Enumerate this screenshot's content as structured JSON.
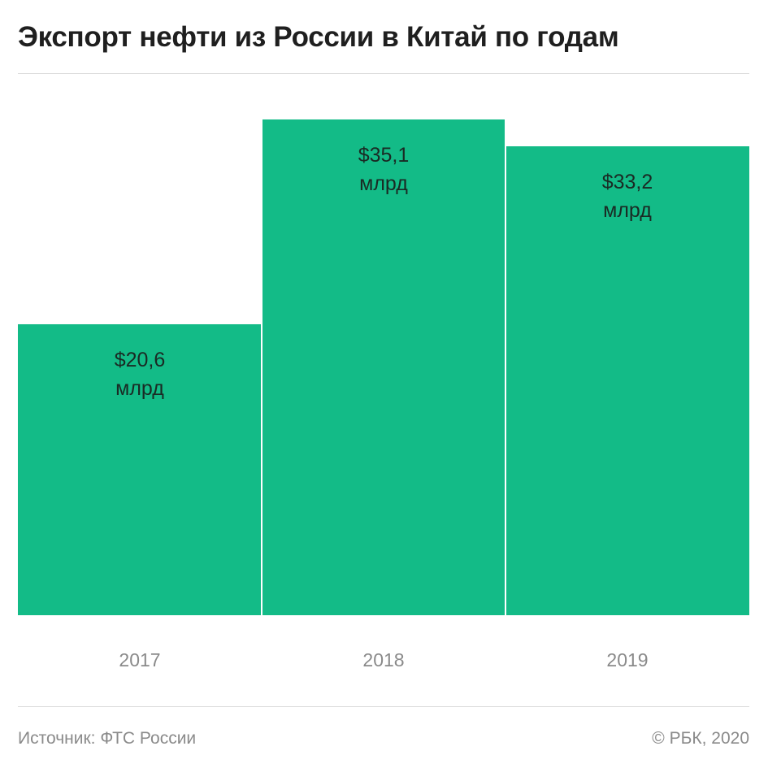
{
  "title": "Экспорт нефти из России в Китай по годам",
  "footer": {
    "source": "Источник: ФТС России",
    "copyright": "© РБК, 2020"
  },
  "colors": {
    "bar": "#13bb87",
    "bar_label": "#1a2a24",
    "tick": "#8a8a8a"
  },
  "chart_data": {
    "type": "bar",
    "categories": [
      "2017",
      "2018",
      "2019"
    ],
    "values": [
      20.6,
      35.1,
      33.2
    ],
    "value_labels": [
      "$20,6",
      "$35,1",
      "$33,2"
    ],
    "value_unit_label": "млрд",
    "title": "Экспорт нефти из России в Китай по годам",
    "xlabel": "",
    "ylabel": "",
    "ylim": [
      0,
      35.1
    ],
    "grid": false,
    "legend": "none"
  }
}
